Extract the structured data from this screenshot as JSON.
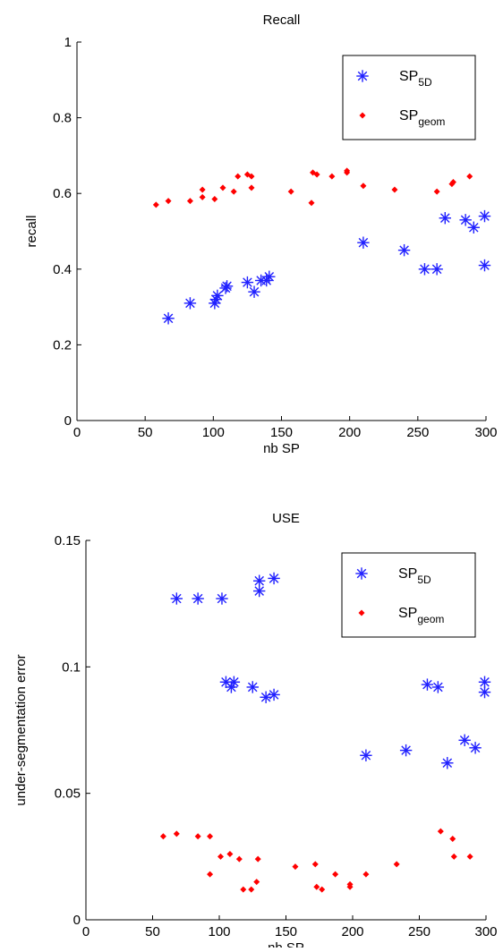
{
  "chart_data": [
    {
      "type": "scatter",
      "title": "Recall",
      "xlabel": "nb SP",
      "ylabel": "recall",
      "xlim": [
        0,
        300
      ],
      "ylim": [
        0,
        1
      ],
      "xticks": [
        "0",
        "50",
        "100",
        "150",
        "200",
        "250",
        "300"
      ],
      "yticks": [
        "0",
        "0.2",
        "0.4",
        "0.6",
        "0.8",
        "1"
      ],
      "legend_position": "top-right",
      "series": [
        {
          "name_base": "SP",
          "name_sub": "5D",
          "marker": "asterisk",
          "color": "#2020ff",
          "points": [
            [
              67,
              0.27
            ],
            [
              83,
              0.31
            ],
            [
              101,
              0.31
            ],
            [
              102,
              0.32
            ],
            [
              103,
              0.33
            ],
            [
              109,
              0.35
            ],
            [
              110,
              0.355
            ],
            [
              125,
              0.365
            ],
            [
              130,
              0.34
            ],
            [
              135,
              0.37
            ],
            [
              139,
              0.37
            ],
            [
              141,
              0.38
            ],
            [
              210,
              0.47
            ],
            [
              240,
              0.45
            ],
            [
              255,
              0.4
            ],
            [
              264,
              0.4
            ],
            [
              270,
              0.535
            ],
            [
              285,
              0.53
            ],
            [
              291,
              0.51
            ],
            [
              299,
              0.54
            ],
            [
              299,
              0.41
            ]
          ]
        },
        {
          "name_base": "SP",
          "name_sub": "geom",
          "marker": "dot",
          "color": "#ff0000",
          "points": [
            [
              58,
              0.57
            ],
            [
              67,
              0.58
            ],
            [
              83,
              0.58
            ],
            [
              92,
              0.59
            ],
            [
              92,
              0.61
            ],
            [
              101,
              0.585
            ],
            [
              107,
              0.615
            ],
            [
              115,
              0.605
            ],
            [
              118,
              0.645
            ],
            [
              125,
              0.65
            ],
            [
              128,
              0.645
            ],
            [
              128,
              0.615
            ],
            [
              157,
              0.605
            ],
            [
              172,
              0.575
            ],
            [
              173,
              0.655
            ],
            [
              176,
              0.65
            ],
            [
              187,
              0.645
            ],
            [
              198,
              0.655
            ],
            [
              198,
              0.66
            ],
            [
              210,
              0.62
            ],
            [
              233,
              0.61
            ],
            [
              264,
              0.605
            ],
            [
              275,
              0.625
            ],
            [
              276,
              0.63
            ],
            [
              288,
              0.645
            ]
          ]
        }
      ]
    },
    {
      "type": "scatter",
      "title": "USE",
      "xlabel": "nb SP",
      "ylabel": "under-segmentation error",
      "xlim": [
        0,
        300
      ],
      "ylim": [
        0,
        0.15
      ],
      "xticks": [
        "0",
        "50",
        "100",
        "150",
        "200",
        "250",
        "300"
      ],
      "yticks": [
        "0",
        "0.05",
        "0.1",
        "0.15"
      ],
      "legend_position": "top-right",
      "series": [
        {
          "name_base": "SP",
          "name_sub": "5D",
          "marker": "asterisk",
          "color": "#2020ff",
          "points": [
            [
              68,
              0.127
            ],
            [
              84,
              0.127
            ],
            [
              102,
              0.127
            ],
            [
              105,
              0.094
            ],
            [
              109,
              0.092
            ],
            [
              111,
              0.094
            ],
            [
              125,
              0.092
            ],
            [
              130,
              0.13
            ],
            [
              130,
              0.134
            ],
            [
              135,
              0.088
            ],
            [
              141,
              0.089
            ],
            [
              141,
              0.135
            ],
            [
              210,
              0.065
            ],
            [
              240,
              0.067
            ],
            [
              256,
              0.093
            ],
            [
              264,
              0.092
            ],
            [
              271,
              0.062
            ],
            [
              284,
              0.071
            ],
            [
              292,
              0.068
            ],
            [
              299,
              0.09
            ],
            [
              299,
              0.094
            ]
          ]
        },
        {
          "name_base": "SP",
          "name_sub": "geom",
          "marker": "dot",
          "color": "#ff0000",
          "points": [
            [
              58,
              0.033
            ],
            [
              68,
              0.034
            ],
            [
              84,
              0.033
            ],
            [
              93,
              0.033
            ],
            [
              93,
              0.018
            ],
            [
              101,
              0.025
            ],
            [
              108,
              0.026
            ],
            [
              115,
              0.024
            ],
            [
              118,
              0.012
            ],
            [
              124,
              0.012
            ],
            [
              128,
              0.015
            ],
            [
              129,
              0.024
            ],
            [
              157,
              0.021
            ],
            [
              172,
              0.022
            ],
            [
              173,
              0.013
            ],
            [
              177,
              0.012
            ],
            [
              187,
              0.018
            ],
            [
              198,
              0.013
            ],
            [
              198,
              0.014
            ],
            [
              210,
              0.018
            ],
            [
              233,
              0.022
            ],
            [
              266,
              0.035
            ],
            [
              275,
              0.032
            ],
            [
              276,
              0.025
            ],
            [
              288,
              0.025
            ]
          ]
        }
      ]
    }
  ]
}
